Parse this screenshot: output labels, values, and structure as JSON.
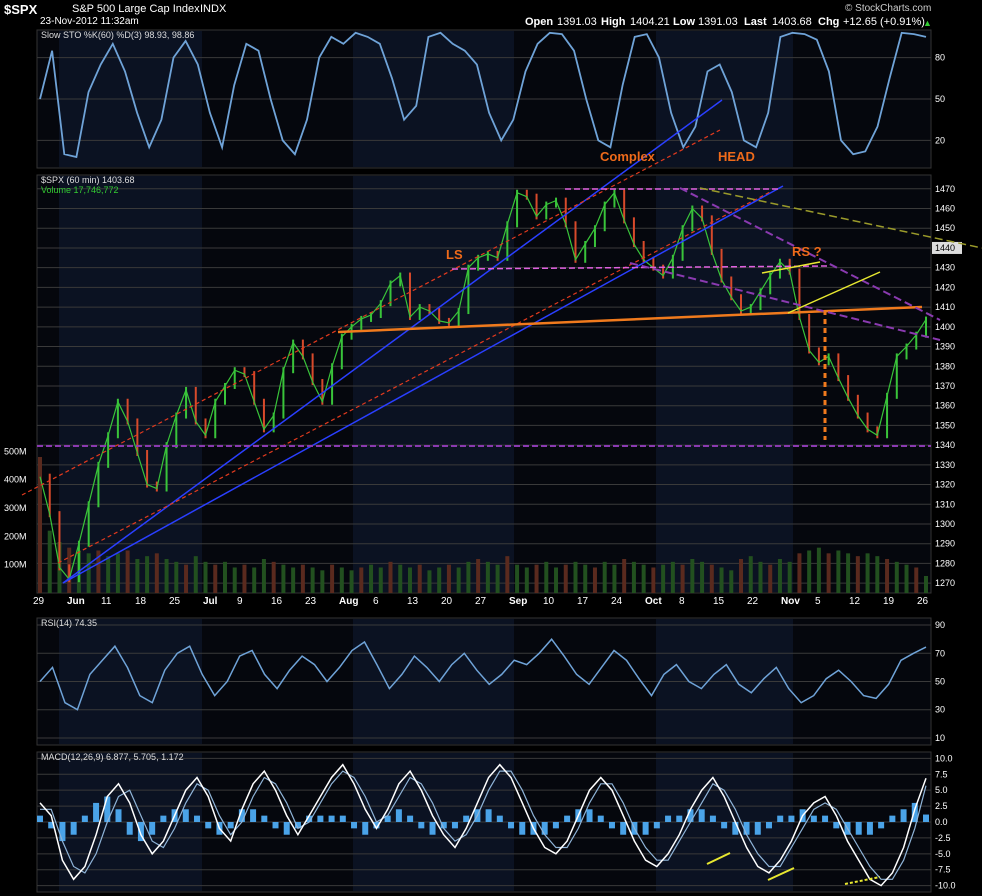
{
  "header": {
    "symbol": "$SPX",
    "name": "S&P 500 Large Cap Index",
    "exchange": "INDX",
    "date": "23-Nov-2012 11:32am",
    "open_label": "Open",
    "open": "1391.03",
    "high_label": "High",
    "high": "1404.21",
    "low_label": "Low",
    "low": "1391.03",
    "last_label": "Last",
    "last": "1403.68",
    "chg_label": "Chg",
    "chg": "+12.65 (+0.91%)",
    "watermark": "© StockCharts.com"
  },
  "colors": {
    "background": "#000000",
    "panel_band": "#0b1222",
    "indicator_line": "#6fa3d8",
    "price_up": "#39c43a",
    "price_down": "#d84a2b",
    "channel_blue": "#2a3fff",
    "channel_red": "#e23a1e",
    "support_orange": "#f07a1d",
    "neckline_magenta": "#e060e0",
    "channel_purple": "#8a3ab0",
    "wedge_yellow": "#e8e830",
    "trend_olive": "#9a9a2a",
    "annotation_orange": "#ee6a1a"
  },
  "chart_data": [
    {
      "type": "line",
      "title": "Slow STO %K(60) %D(3)",
      "legend": [
        "Slow STO %K(60) %D(3) 98.93, 98.86"
      ],
      "ylim": [
        0,
        100
      ],
      "yticks": [
        20,
        50,
        80
      ],
      "values": [
        50,
        85,
        10,
        8,
        55,
        75,
        90,
        70,
        40,
        15,
        35,
        80,
        92,
        75,
        40,
        15,
        60,
        90,
        85,
        50,
        20,
        10,
        35,
        80,
        95,
        90,
        98,
        95,
        90,
        65,
        35,
        45,
        95,
        98,
        90,
        85,
        75,
        40,
        20,
        35,
        70,
        90,
        98,
        97,
        85,
        50,
        20,
        15,
        60,
        95,
        97,
        80,
        40,
        15,
        30,
        70,
        75,
        55,
        20,
        15,
        40,
        95,
        98,
        97,
        93,
        70,
        20,
        10,
        12,
        30,
        65,
        98,
        97,
        95
      ]
    },
    {
      "type": "line",
      "title": "$SPX (60 min)",
      "legend": [
        "$SPX (60 min) 1403.68",
        "Volume 17,746,772"
      ],
      "ylim": [
        1265,
        1477
      ],
      "yticks": [
        1270,
        1280,
        1290,
        1300,
        1310,
        1320,
        1330,
        1340,
        1350,
        1360,
        1370,
        1380,
        1390,
        1400,
        1410,
        1420,
        1430,
        1440,
        1450,
        1460,
        1470
      ],
      "right_marker": "1440",
      "volume_ticks": [
        "100M",
        "200M",
        "300M",
        "400M",
        "500M"
      ],
      "xticks": [
        "29",
        "Jun",
        "11",
        "18",
        "25",
        "Jul",
        "9",
        "16",
        "23",
        "Aug",
        "6",
        "13",
        "20",
        "27",
        "Sep",
        "10",
        "17",
        "24",
        "Oct",
        "8",
        "15",
        "22",
        "Nov",
        "5",
        "12",
        "19",
        "26"
      ],
      "price": [
        1324,
        1305,
        1278,
        1272,
        1290,
        1310,
        1330,
        1345,
        1362,
        1352,
        1336,
        1320,
        1318,
        1340,
        1355,
        1368,
        1352,
        1345,
        1362,
        1370,
        1378,
        1376,
        1362,
        1348,
        1355,
        1378,
        1392,
        1385,
        1372,
        1362,
        1380,
        1395,
        1400,
        1404,
        1406,
        1412,
        1422,
        1426,
        1405,
        1410,
        1408,
        1403,
        1402,
        1408,
        1430,
        1435,
        1437,
        1435,
        1452,
        1468,
        1466,
        1456,
        1462,
        1464,
        1452,
        1434,
        1442,
        1450,
        1462,
        1468,
        1454,
        1442,
        1434,
        1430,
        1426,
        1435,
        1450,
        1460,
        1455,
        1438,
        1424,
        1415,
        1408,
        1410,
        1418,
        1426,
        1433,
        1428,
        1405,
        1388,
        1382,
        1385,
        1374,
        1364,
        1355,
        1348,
        1345,
        1365,
        1385,
        1390,
        1396,
        1403.68
      ],
      "volume_millions": [
        480,
        220,
        180,
        160,
        150,
        140,
        150,
        130,
        140,
        150,
        120,
        130,
        140,
        120,
        110,
        100,
        130,
        110,
        100,
        110,
        90,
        100,
        90,
        120,
        110,
        100,
        90,
        100,
        90,
        80,
        100,
        90,
        80,
        90,
        100,
        90,
        110,
        100,
        90,
        100,
        80,
        90,
        100,
        90,
        110,
        120,
        110,
        100,
        130,
        100,
        90,
        100,
        110,
        90,
        100,
        110,
        100,
        90,
        110,
        100,
        120,
        110,
        100,
        90,
        100,
        110,
        100,
        120,
        110,
        100,
        90,
        80,
        120,
        130,
        110,
        100,
        120,
        110,
        140,
        150,
        160,
        140,
        150,
        140,
        130,
        140,
        130,
        120,
        110,
        100,
        90,
        60
      ],
      "annotations": [
        "Complex",
        "HEAD",
        "LS",
        "RS ?"
      ]
    },
    {
      "type": "line",
      "title": "RSI(14)",
      "legend": [
        "RSI(14) 74.35"
      ],
      "ylim": [
        5,
        95
      ],
      "yticks": [
        10,
        30,
        50,
        70,
        90
      ],
      "values": [
        50,
        60,
        35,
        30,
        55,
        65,
        75,
        60,
        40,
        35,
        58,
        70,
        75,
        55,
        40,
        50,
        68,
        72,
        55,
        45,
        58,
        68,
        62,
        50,
        60,
        72,
        78,
        62,
        45,
        55,
        68,
        60,
        50,
        62,
        70,
        58,
        48,
        55,
        65,
        62,
        70,
        80,
        68,
        55,
        48,
        60,
        72,
        65,
        52,
        40,
        55,
        62,
        50,
        45,
        55,
        62,
        48,
        42,
        52,
        60,
        45,
        35,
        40,
        52,
        58,
        50,
        40,
        38,
        48,
        65,
        70,
        74.35
      ]
    },
    {
      "type": "line",
      "title": "MACD(12,26,9)",
      "legend": [
        "MACD(12,26,9) 6.877, 5.705, 1.172"
      ],
      "ylim": [
        -11,
        11
      ],
      "yticks": [
        -10.0,
        -7.5,
        -5.0,
        -2.5,
        0.0,
        2.5,
        5.0,
        7.5,
        10.0
      ],
      "macd": [
        3,
        1,
        -6,
        -9,
        -7,
        -2,
        4,
        6,
        3,
        -2,
        -5,
        -3,
        1,
        5,
        7,
        4,
        -1,
        -3,
        2,
        6,
        8,
        5,
        1,
        -2,
        1,
        4,
        7,
        9,
        6,
        2,
        -1,
        2,
        6,
        8,
        5,
        1,
        -2,
        -4,
        -1,
        3,
        7,
        9,
        7,
        3,
        -1,
        -4,
        -5,
        -3,
        1,
        5,
        7,
        5,
        1,
        -3,
        -6,
        -7,
        -5,
        -2,
        2,
        5,
        7,
        4,
        0,
        -4,
        -7,
        -8,
        -6,
        -3,
        1,
        3,
        4,
        1,
        -3,
        -6,
        -9,
        -10,
        -8,
        -4,
        2,
        6.877
      ],
      "signal": [
        2,
        2,
        -3,
        -7,
        -8,
        -5,
        0,
        4,
        5,
        1,
        -3,
        -4,
        -1,
        3,
        6,
        5,
        1,
        -2,
        0,
        4,
        7,
        6,
        3,
        -1,
        0,
        3,
        6,
        8,
        7,
        4,
        0,
        1,
        4,
        7,
        6,
        3,
        -1,
        -3,
        -2,
        1,
        5,
        8,
        8,
        5,
        1,
        -2,
        -4,
        -4,
        -1,
        3,
        6,
        6,
        3,
        -1,
        -4,
        -6,
        -6,
        -3,
        0,
        3,
        6,
        5,
        2,
        -2,
        -5,
        -7,
        -7,
        -4,
        -1,
        2,
        3,
        2,
        -1,
        -4,
        -7,
        -9,
        -9,
        -6,
        -1,
        5.705
      ],
      "annotations": [
        "divergence-1",
        "divergence-2",
        "divergence-3"
      ]
    }
  ]
}
